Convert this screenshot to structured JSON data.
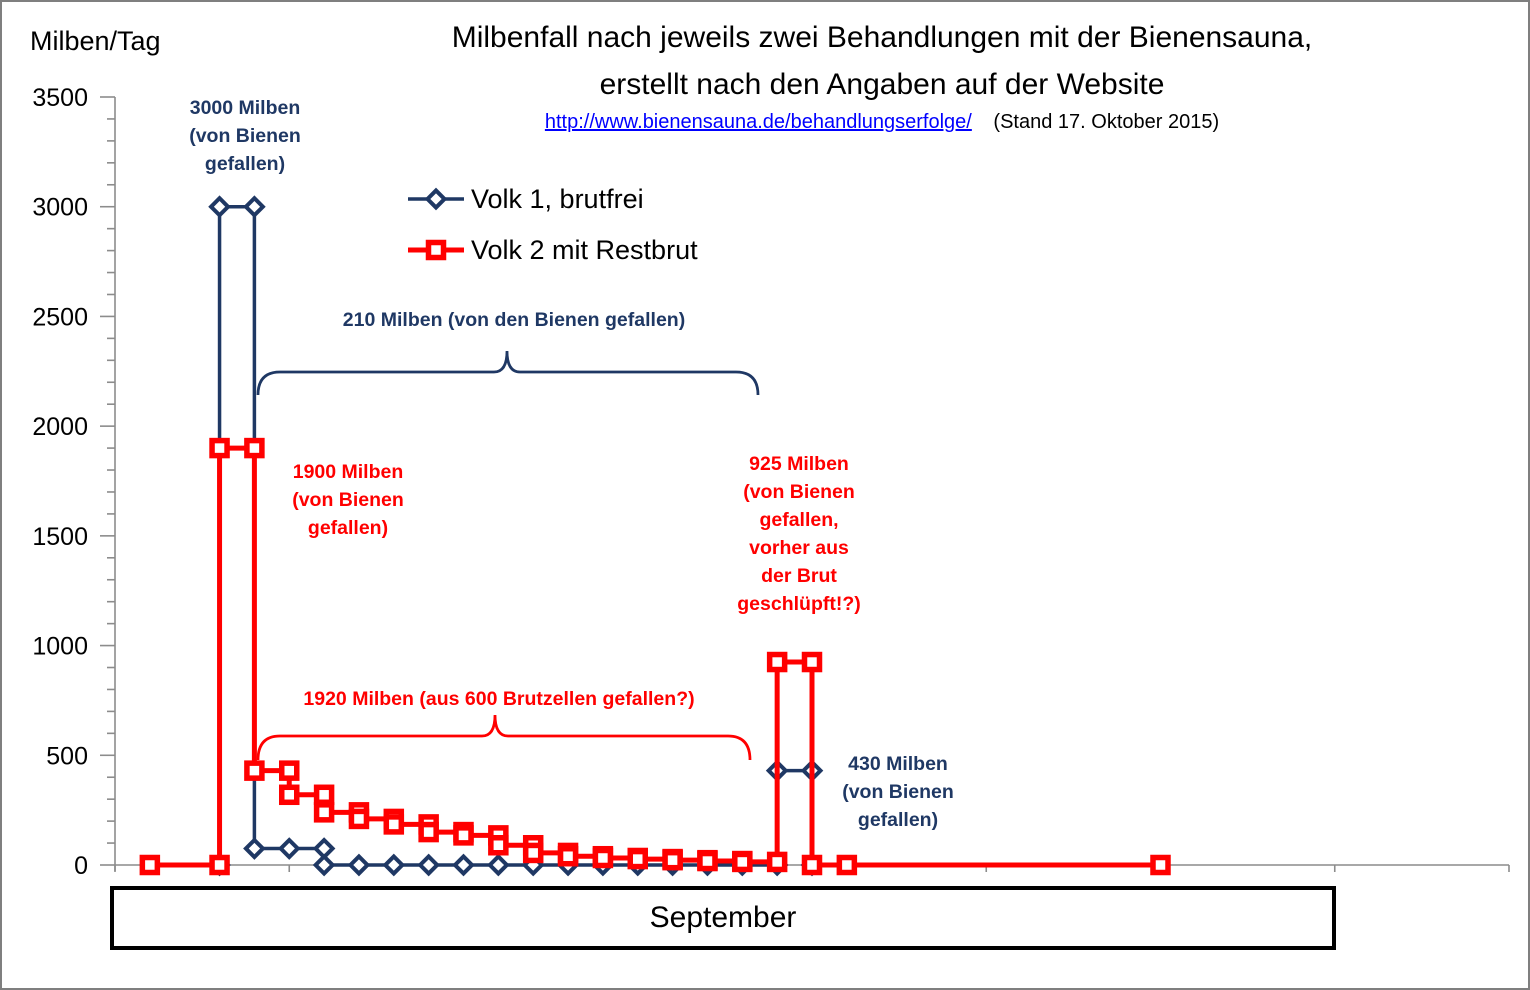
{
  "figure": {
    "unit_label": "Milben/Tag",
    "title_line1": "Milbenfall nach jeweils  zwei Behandlungen mit der Bienensauna,",
    "title_line2": "erstellt nach den Angaben auf der Website",
    "source_link": "http://www.bienensauna.de/behandlungserfolge/",
    "stand_note": "(Stand 17. Oktober 2015)",
    "month_label": "September"
  },
  "colors": {
    "navy": "#1f3864",
    "red": "#ff0000",
    "link_blue": "#0000ff",
    "axis_gray": "#8c8c8c"
  },
  "annotations": {
    "blue_3000": {
      "lines": [
        "3000 Milben",
        "(von Bienen",
        "gefallen)"
      ]
    },
    "blue_210": {
      "lines": [
        "210 Milben (von den Bienen gefallen)"
      ]
    },
    "red_1900": {
      "lines": [
        "1900 Milben",
        "(von Bienen",
        "gefallen)"
      ]
    },
    "red_925": {
      "lines": [
        "925 Milben",
        "(von Bienen",
        "gefallen,",
        "vorher aus",
        "der Brut",
        "geschlüpft!?)"
      ]
    },
    "red_1920": {
      "lines": [
        "1920 Milben (aus 600 Brutzellen gefallen?)"
      ]
    },
    "blue_430": {
      "lines": [
        "430 Milben",
        "(von Bienen",
        "gefallen)"
      ]
    }
  },
  "chart_data": {
    "type": "line",
    "title": "Milbenfall nach jeweils zwei Behandlungen mit der Bienensauna, erstellt nach den Angaben auf der Website",
    "xlabel": "September",
    "ylabel": "Milben/Tag",
    "xlim": [
      0,
      40
    ],
    "ylim": [
      0,
      3500
    ],
    "x_unit": "day of September",
    "y_major_ticks": [
      0,
      500,
      1000,
      1500,
      2000,
      2500,
      3000,
      3500
    ],
    "y_minor_step": 100,
    "x_ticks_days": [
      0,
      5,
      10,
      15,
      20,
      25,
      30,
      35,
      40
    ],
    "grid": false,
    "legend_position": "top-left inside",
    "series": [
      {
        "id": "volk1",
        "name": "Volk 1, brutfrei",
        "color": "#1f3864",
        "marker": "diamond",
        "line_width": 3.5,
        "points": [
          [
            3,
            0
          ],
          [
            3,
            3000
          ],
          [
            4,
            3000
          ],
          [
            4,
            75
          ],
          [
            5,
            75
          ],
          [
            6,
            75
          ],
          [
            6,
            0
          ],
          [
            7,
            0
          ],
          [
            8,
            0
          ],
          [
            9,
            0
          ],
          [
            10,
            0
          ],
          [
            11,
            0
          ],
          [
            12,
            0
          ],
          [
            13,
            0
          ],
          [
            14,
            0
          ],
          [
            15,
            0
          ],
          [
            16,
            0
          ],
          [
            17,
            0
          ],
          [
            18,
            0
          ],
          [
            19,
            0
          ],
          [
            19,
            430
          ],
          [
            20,
            430
          ],
          [
            20,
            0
          ]
        ]
      },
      {
        "id": "volk2",
        "name": "Volk 2 mit Restbrut",
        "color": "#ff0000",
        "marker": "square",
        "line_width": 5,
        "points": [
          [
            1,
            0
          ],
          [
            3,
            0
          ],
          [
            3,
            1900
          ],
          [
            4,
            1900
          ],
          [
            4,
            430
          ],
          [
            5,
            430
          ],
          [
            5,
            320
          ],
          [
            6,
            320
          ],
          [
            6,
            240
          ],
          [
            7,
            240
          ],
          [
            7,
            210
          ],
          [
            8,
            210
          ],
          [
            8,
            185
          ],
          [
            9,
            185
          ],
          [
            9,
            150
          ],
          [
            10,
            150
          ],
          [
            10,
            135
          ],
          [
            11,
            135
          ],
          [
            11,
            90
          ],
          [
            12,
            90
          ],
          [
            12,
            55
          ],
          [
            13,
            55
          ],
          [
            13,
            40
          ],
          [
            14,
            40
          ],
          [
            14,
            32
          ],
          [
            15,
            32
          ],
          [
            15,
            27
          ],
          [
            16,
            27
          ],
          [
            16,
            22
          ],
          [
            17,
            22
          ],
          [
            17,
            18
          ],
          [
            18,
            18
          ],
          [
            18,
            14
          ],
          [
            19,
            14
          ],
          [
            19,
            925
          ],
          [
            20,
            925
          ],
          [
            20,
            0
          ],
          [
            21,
            0
          ],
          [
            30,
            0
          ]
        ]
      }
    ]
  }
}
